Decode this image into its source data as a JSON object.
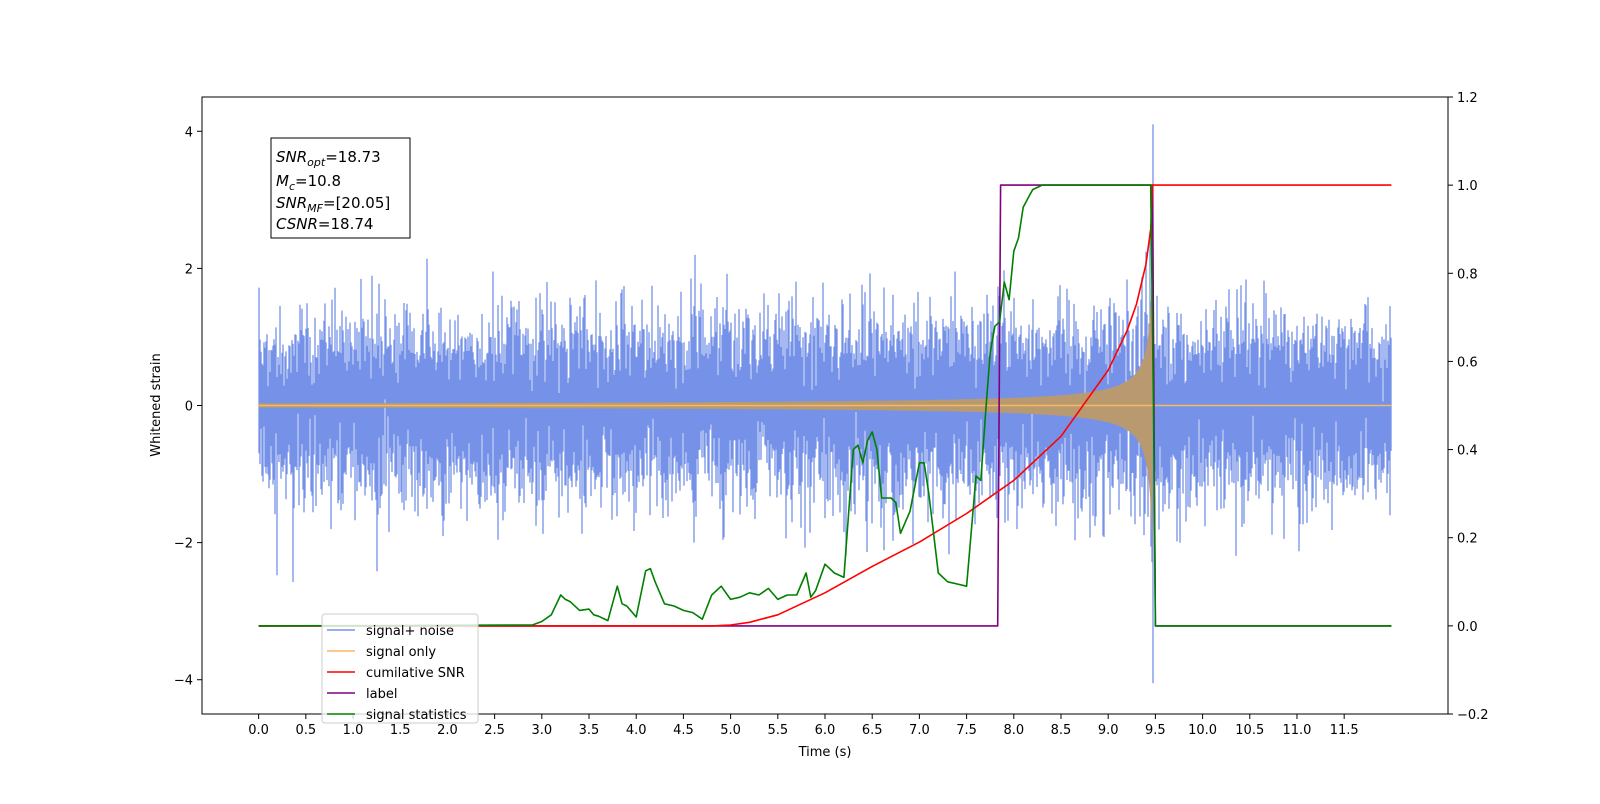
{
  "chart_data": {
    "type": "line",
    "xlabel": "Time (s)",
    "ylabel": "Whitened strain",
    "xlim": [
      -0.6,
      12.6
    ],
    "ylim_left": [
      -4.5,
      4.5
    ],
    "ylim_right": [
      -0.2,
      1.2
    ],
    "x_ticks": [
      "0.0",
      "0.5",
      "1.0",
      "1.5",
      "2.0",
      "2.5",
      "3.0",
      "3.5",
      "4.0",
      "4.5",
      "5.0",
      "5.5",
      "6.0",
      "6.5",
      "7.0",
      "7.5",
      "8.0",
      "8.5",
      "9.0",
      "9.5",
      "10.0",
      "10.5",
      "11.0",
      "11.5"
    ],
    "y_ticks_left": [
      "4",
      "2",
      "0",
      "−2",
      "−4"
    ],
    "y_ticks_right": [
      "1.2",
      "1.0",
      "0.8",
      "0.6",
      "0.4",
      "0.2",
      "0.0",
      "−0.2"
    ],
    "legend_placement": "lower-left",
    "series": [
      {
        "name": "signal+ noise",
        "axis": "left",
        "color": "#7692e8",
        "description_values": {
          "x_start": 0.0,
          "x_end": 12.0,
          "noise_band": [
            -2.0,
            2.0
          ],
          "peak": 4.1,
          "trough": -4.05,
          "peak_x": 9.47
        }
      },
      {
        "name": "signal only",
        "axis": "left",
        "color": "#f5b962",
        "chirp": {
          "t_merge": 9.47,
          "amp_at_merge": 2.4,
          "amp_at_0s": 0.03
        }
      },
      {
        "name": "cumilative SNR",
        "axis": "right",
        "color": "#ff0000",
        "x": [
          0,
          4.8,
          5.0,
          5.2,
          5.5,
          6.0,
          6.5,
          7.0,
          7.5,
          8.0,
          8.5,
          9.0,
          9.2,
          9.3,
          9.4,
          9.45,
          9.47,
          12.0
        ],
        "y": [
          0,
          0,
          0.002,
          0.008,
          0.025,
          0.075,
          0.135,
          0.19,
          0.255,
          0.33,
          0.43,
          0.58,
          0.67,
          0.73,
          0.82,
          0.9,
          1.0,
          1.0
        ]
      },
      {
        "name": "label",
        "axis": "right",
        "color": "#800080",
        "x": [
          0,
          7.83,
          7.86,
          9.47,
          9.5,
          12.0
        ],
        "y": [
          0,
          0,
          1,
          1,
          0,
          0
        ]
      },
      {
        "name": "signal statistics",
        "axis": "right",
        "color": "#008000",
        "x": [
          0,
          2.9,
          3.0,
          3.1,
          3.2,
          3.25,
          3.3,
          3.4,
          3.5,
          3.55,
          3.6,
          3.7,
          3.8,
          3.85,
          3.9,
          4.0,
          4.1,
          4.15,
          4.2,
          4.3,
          4.4,
          4.5,
          4.6,
          4.7,
          4.8,
          4.9,
          5.0,
          5.1,
          5.2,
          5.3,
          5.4,
          5.5,
          5.6,
          5.7,
          5.8,
          5.85,
          5.9,
          6.0,
          6.1,
          6.2,
          6.3,
          6.35,
          6.4,
          6.45,
          6.5,
          6.55,
          6.6,
          6.7,
          6.75,
          6.8,
          6.9,
          7.0,
          7.05,
          7.1,
          7.2,
          7.3,
          7.4,
          7.5,
          7.6,
          7.65,
          7.7,
          7.75,
          7.8,
          7.85,
          7.9,
          7.95,
          8.0,
          8.05,
          8.1,
          8.15,
          8.2,
          8.3,
          8.4,
          8.5,
          8.6,
          9.0,
          9.45,
          9.48,
          9.5,
          12.0
        ],
        "y": [
          0,
          0.002,
          0.01,
          0.025,
          0.07,
          0.06,
          0.055,
          0.035,
          0.038,
          0.025,
          0.022,
          0.012,
          0.09,
          0.05,
          0.045,
          0.02,
          0.125,
          0.13,
          0.1,
          0.05,
          0.045,
          0.035,
          0.03,
          0.015,
          0.07,
          0.09,
          0.06,
          0.065,
          0.075,
          0.07,
          0.085,
          0.06,
          0.07,
          0.07,
          0.12,
          0.065,
          0.08,
          0.14,
          0.12,
          0.11,
          0.4,
          0.41,
          0.37,
          0.42,
          0.44,
          0.4,
          0.29,
          0.29,
          0.28,
          0.21,
          0.26,
          0.37,
          0.37,
          0.3,
          0.12,
          0.1,
          0.095,
          0.09,
          0.34,
          0.33,
          0.48,
          0.62,
          0.68,
          0.69,
          0.78,
          0.74,
          0.85,
          0.88,
          0.95,
          0.97,
          0.99,
          1.0,
          1.0,
          1.0,
          1.0,
          1.0,
          1.0,
          0.5,
          0,
          0
        ]
      }
    ],
    "annotations": {
      "snr_opt_value": "=18.73",
      "mc_value": "=10.8",
      "snr_mf_value": "=[20.05]",
      "csnr_value": "=18.74"
    }
  }
}
